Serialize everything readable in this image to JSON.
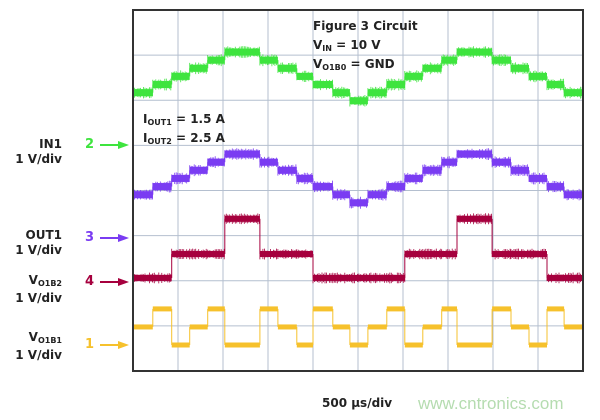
{
  "chart_data": {
    "type": "line",
    "title": "",
    "annotations": {
      "circuit": "Figure 3 Circuit",
      "vin": {
        "main": "V",
        "sub": "IN",
        "rest": " = 10 V"
      },
      "vo1b0": {
        "main": "V",
        "sub": "O1B0",
        "rest": " = GND"
      },
      "iout1": {
        "main": "I",
        "sub": "OUT1",
        "rest": " = 1.5 A"
      },
      "iout2": {
        "main": "I",
        "sub": "OUT2",
        "rest": " = 2.5 A"
      }
    },
    "xlabel": "500 µs/div",
    "x_unit": "µs",
    "xlim": [
      0,
      5000
    ],
    "divisions": {
      "horizontal": 10,
      "vertical": 8
    },
    "grid": true,
    "segment_boundaries_us": [
      0,
      220,
      430,
      630,
      830,
      1020,
      1410,
      1610,
      1820,
      2000,
      2220,
      2410,
      2610,
      2820,
      3020,
      3220,
      3430,
      3600,
      3990,
      4200,
      4400,
      4600,
      4790,
      5000
    ],
    "series": [
      {
        "channel": "2",
        "name": "IN1",
        "scale": "1 V/div",
        "color": "#3ee43e",
        "values": [
          1.16,
          1.34,
          1.52,
          1.7,
          1.88,
          2.06,
          1.88,
          1.7,
          1.52,
          1.34,
          1.16,
          0.98,
          1.16,
          1.34,
          1.52,
          1.7,
          1.88,
          2.06,
          1.88,
          1.7,
          1.52,
          1.34,
          1.16
        ]
      },
      {
        "channel": "3",
        "name": "OUT1",
        "scale": "1 V/div",
        "color": "#7a3cf2",
        "values": [
          0.96,
          1.14,
          1.32,
          1.5,
          1.68,
          1.86,
          1.68,
          1.5,
          1.32,
          1.14,
          0.96,
          0.78,
          0.96,
          1.14,
          1.32,
          1.5,
          1.68,
          1.86,
          1.68,
          1.5,
          1.32,
          1.14,
          0.96
        ]
      },
      {
        "channel": "4",
        "name_main": "V",
        "name_sub": "O1B2",
        "scale": "1 V/div",
        "color": "#a6003e",
        "values": [
          0.09,
          0.09,
          0.62,
          0.62,
          0.62,
          1.4,
          0.62,
          0.62,
          0.62,
          0.09,
          0.09,
          0.09,
          0.09,
          0.09,
          0.62,
          0.62,
          0.62,
          1.4,
          0.62,
          0.62,
          0.62,
          0.09,
          0.09
        ]
      },
      {
        "channel": "1",
        "name_main": "V",
        "name_sub": "O1B1",
        "scale": "1 V/div",
        "color": "#f6c12c",
        "values": [
          0.4,
          0.8,
          0,
          0.4,
          0.8,
          0,
          0.8,
          0.4,
          0,
          0.8,
          0.4,
          0,
          0.4,
          0.8,
          0,
          0.4,
          0.8,
          0,
          0.8,
          0.4,
          0,
          0.8,
          0.4
        ]
      }
    ]
  },
  "watermark": "www.cntronics.com"
}
